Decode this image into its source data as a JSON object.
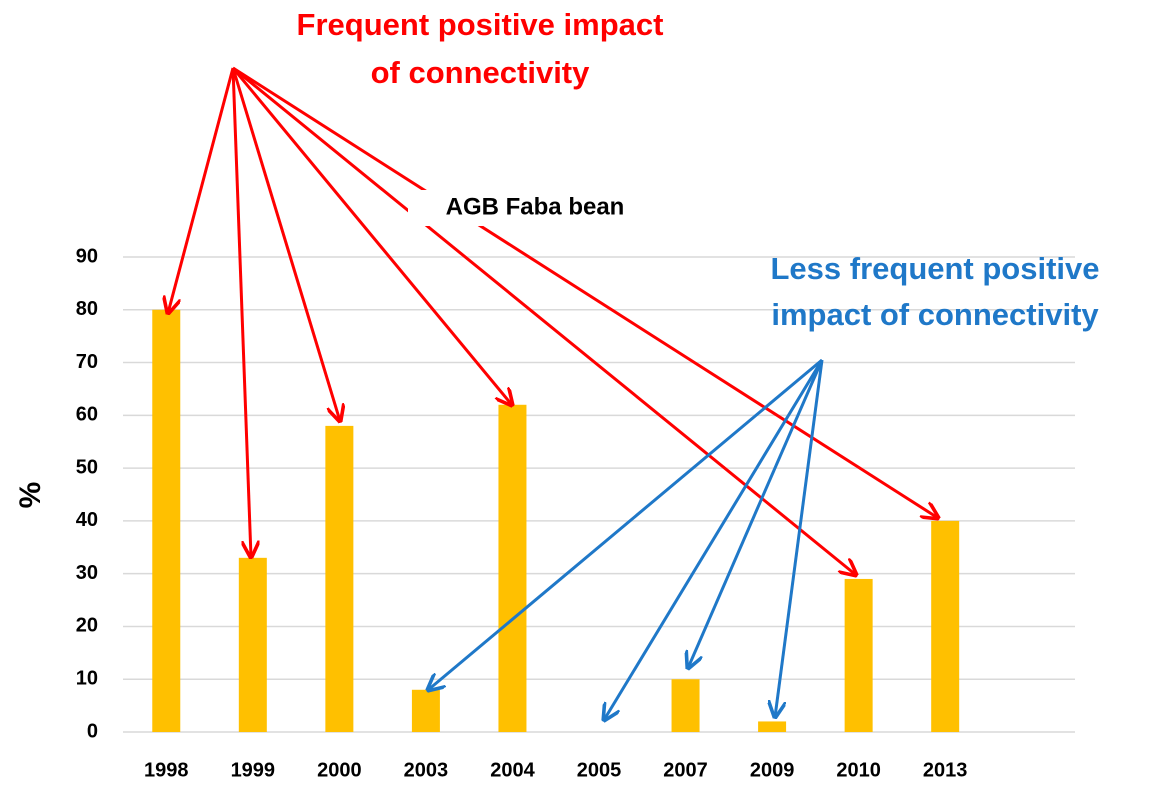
{
  "chart_data": {
    "type": "bar",
    "title": "AGB Faba bean",
    "ylabel": "%",
    "categories": [
      "1998",
      "1999",
      "2000",
      "2003",
      "2004",
      "2005",
      "2007",
      "2009",
      "2010",
      "2013"
    ],
    "values": [
      80,
      33,
      58,
      8,
      62,
      0,
      10,
      2,
      29,
      40
    ],
    "color": "#ffc000",
    "ylim": [
      0,
      90
    ],
    "yticks": [
      0,
      10,
      20,
      30,
      40,
      50,
      60,
      70,
      80,
      90
    ],
    "grid": true,
    "annotations": [
      {
        "lines": [
          "Frequent positive impact",
          "of connectivity"
        ],
        "color": "#ff0000"
      },
      {
        "lines": [
          "Less frequent positive",
          "impact of connectivity"
        ],
        "color": "#1f78c8"
      }
    ]
  }
}
